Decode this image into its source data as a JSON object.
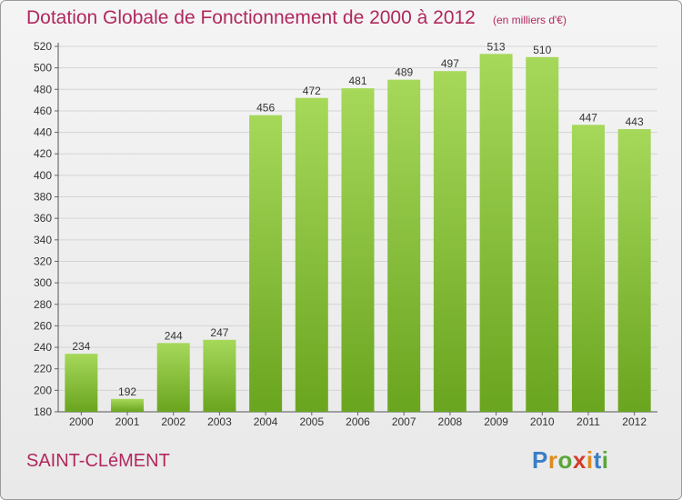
{
  "header": {
    "title": "Dotation Globale de Fonctionnement de 2000 à 2012",
    "unit_note": "(en milliers d'€)"
  },
  "footer": {
    "commune": "SAINT-CLéMENT",
    "logo_text": "Proxiti",
    "logo_colors": [
      "#3a7ec6",
      "#e08a1e",
      "#5aa63a",
      "#d33b2b",
      "#e08a1e",
      "#3a7ec6",
      "#5aa63a"
    ]
  },
  "colors": {
    "bar_light": "#a6d85a",
    "bar_dark": "#6aa51f",
    "title": "#b0285e",
    "grid": "#d6d6d6"
  },
  "chart_data": {
    "type": "bar",
    "title": "Dotation Globale de Fonctionnement de 2000 à 2012",
    "subtitle": "(en milliers d'€)",
    "categories": [
      "2000",
      "2001",
      "2002",
      "2003",
      "2004",
      "2005",
      "2006",
      "2007",
      "2008",
      "2009",
      "2010",
      "2011",
      "2012"
    ],
    "values": [
      234,
      192,
      244,
      247,
      456,
      472,
      481,
      489,
      497,
      513,
      510,
      447,
      443
    ],
    "ylim": [
      180,
      520
    ],
    "yticks": [
      180,
      200,
      220,
      240,
      260,
      280,
      300,
      320,
      340,
      360,
      380,
      400,
      420,
      440,
      460,
      480,
      500,
      520
    ],
    "grid": true,
    "legend": "none"
  }
}
